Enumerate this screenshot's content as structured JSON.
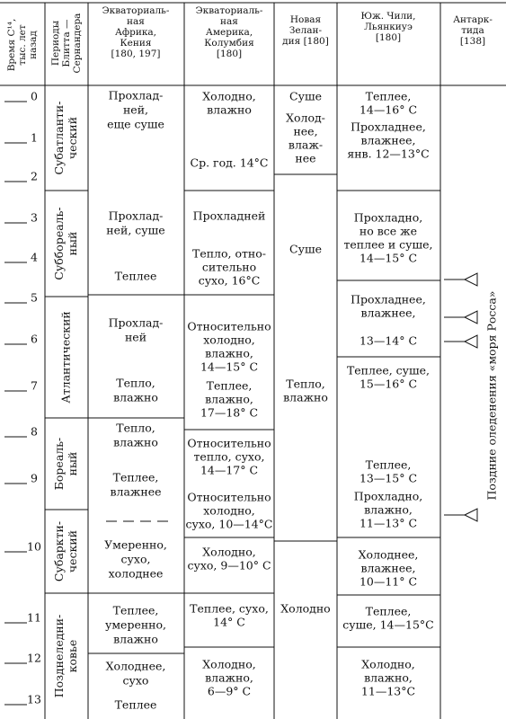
{
  "header": {
    "time": [
      "Время С¹⁴,",
      "тыс. лет",
      "назад"
    ],
    "periods": [
      "Периоды",
      "Блитта —",
      "Сернандера"
    ],
    "columns": [
      [
        "Экваториаль-",
        "ная",
        "Африка,",
        "Кения",
        "[180, 197]"
      ],
      [
        "Экваториаль-",
        "ная",
        "Америка,",
        "Колумбия",
        "[180]"
      ],
      [
        "Новая",
        "Зелан-",
        "дия [180]"
      ],
      [
        "Юж. Чили,",
        "Льянкиуэ",
        "[180]"
      ],
      [
        "Антарк-",
        "тида",
        "[138]"
      ]
    ]
  },
  "time_ticks": [
    "0",
    "1",
    "2",
    "3",
    "4",
    "5",
    "6",
    "7",
    "8",
    "9",
    "10",
    "11",
    "12",
    "13"
  ],
  "periods": [
    [
      "Субатланти-",
      "ческий"
    ],
    [
      "Суббореаль-",
      "ный"
    ],
    [
      "Атлантический"
    ],
    [
      "Бореаль-",
      "ный"
    ],
    [
      "Субаркти-",
      "ческий"
    ],
    [
      "Позднеледни-",
      "ковье"
    ]
  ],
  "cells": {
    "africa": [
      [
        "Прохлад-",
        "ней,",
        "еще суше"
      ],
      [
        "Прохлад-",
        "ней, суше"
      ],
      [
        "Теплее"
      ],
      [
        "Прохлад-",
        "ней"
      ],
      [
        "Тепло,",
        "влажно"
      ],
      [
        "Тепло,",
        "влажно"
      ],
      [
        "Теплее,",
        "влажнее"
      ],
      [
        "Умеренно,",
        "сухо,",
        "холоднее"
      ],
      [
        "Теплее,",
        "умеренно,",
        "влажно"
      ],
      [
        "Холоднее,",
        "сухо"
      ],
      [
        "Теплее"
      ]
    ],
    "america": [
      [
        "Холодно,",
        "влажно"
      ],
      [
        "Ср. год. 14°C"
      ],
      [
        "Прохладней"
      ],
      [
        "Тепло, отно-",
        "сительно",
        "сухо, 16°C"
      ],
      [
        "Относительно",
        "холодно,",
        "влажно,",
        "14—15° C"
      ],
      [
        "Теплее,",
        "влажно,",
        "17—18° C"
      ],
      [
        "Относительно",
        "тепло, сухо,",
        "14—17° C"
      ],
      [
        "Относительно",
        "холодно,",
        "сухо, 10—14°C"
      ],
      [
        "Холодно,",
        "сухо, 9—10° C"
      ],
      [
        "Теплее, сухо,",
        "14° C"
      ],
      [
        "Холодно,",
        "влажно,",
        "6—9° C"
      ]
    ],
    "new_zealand": [
      [
        "Суше"
      ],
      [
        "Холод-",
        "нее,",
        "влаж-",
        "нее"
      ],
      [
        "Суше"
      ],
      [
        "Тепло,",
        "влажно"
      ],
      [
        "Холодно"
      ]
    ],
    "chile": [
      [
        "Теплее,",
        "14—16° C"
      ],
      [
        "Прохладнее,",
        "влажнее,",
        "янв. 12—13°C"
      ],
      [
        "Прохладно,",
        "но все же",
        "теплее и суше,",
        "14—15° C"
      ],
      [
        "Прохладнее,",
        "влажнее,"
      ],
      [
        "13—14° C"
      ],
      [
        "Теплее, суше,",
        "15—16° C"
      ],
      [
        "Теплее,",
        "13—15° C"
      ],
      [
        "Прохладно,",
        "влажно,",
        "11—13° C"
      ],
      [
        "Холоднее,",
        "влажнее,",
        "10—11° C"
      ],
      [
        "Теплее,",
        "суше, 14—15°C"
      ],
      [
        "Холодно,",
        "влажно,",
        "11—13°C"
      ]
    ]
  },
  "antarctica_note": "Поздние оледенения «моря Росса»"
}
